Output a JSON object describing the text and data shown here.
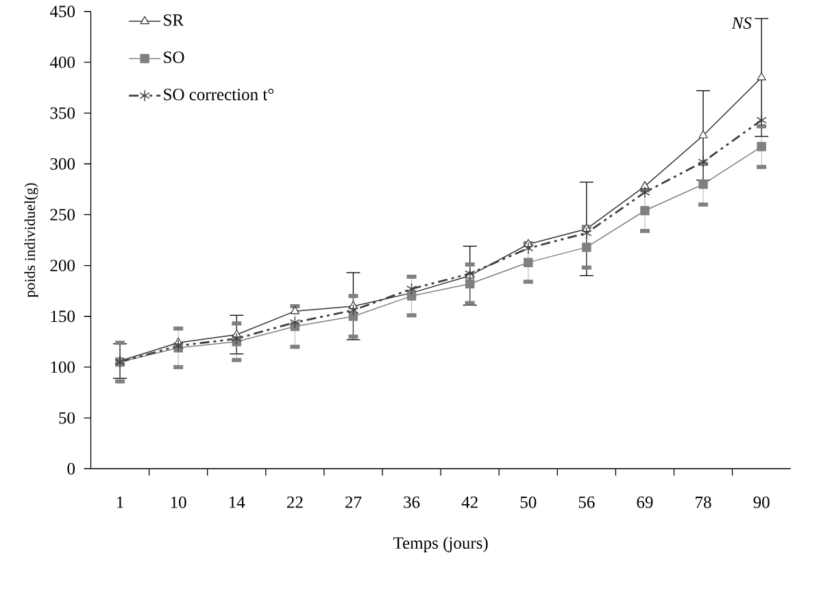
{
  "chart_data": {
    "type": "line",
    "xlabel": "Temps (jours)",
    "ylabel": "poids individuel(g)",
    "categories": [
      "1",
      "10",
      "14",
      "22",
      "27",
      "36",
      "42",
      "50",
      "56",
      "69",
      "78",
      "90"
    ],
    "ylim": [
      0,
      450
    ],
    "yticks": [
      0,
      50,
      100,
      150,
      200,
      250,
      300,
      350,
      400,
      450
    ],
    "legend": "top left",
    "grid": false,
    "annotations": [
      "NS"
    ],
    "series": [
      {
        "name": "SR",
        "color": "#333333",
        "marker": "triangle",
        "line_style": "solid",
        "values": [
          106,
          124,
          132,
          155,
          160,
          173,
          190,
          221,
          236,
          278,
          328,
          385
        ],
        "errors": [
          17,
          null,
          19,
          null,
          33,
          null,
          29,
          null,
          46,
          null,
          44,
          58
        ]
      },
      {
        "name": "SO",
        "color": "#808080",
        "marker": "square",
        "line_style": "solid",
        "values": [
          105,
          119,
          125,
          140,
          150,
          170,
          182,
          203,
          218,
          254,
          280,
          317
        ],
        "errors": [
          19,
          19,
          18,
          20,
          20,
          19,
          19,
          19,
          20,
          20,
          20,
          20
        ]
      },
      {
        "name": "SO correction t°",
        "color": "#404040",
        "marker": "cross",
        "line_style": "dashdot",
        "values": [
          105,
          121,
          128,
          144,
          156,
          177,
          192,
          217,
          232,
          272,
          302,
          343
        ]
      }
    ]
  }
}
